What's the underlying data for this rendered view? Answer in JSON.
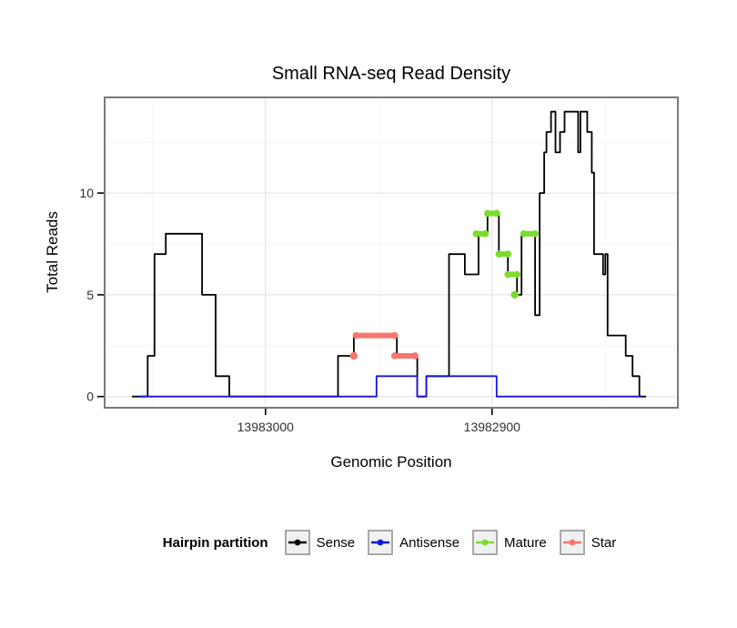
{
  "chart_data": {
    "type": "line",
    "title": "Small RNA-seq Read Density",
    "xlabel": "Genomic Position",
    "ylabel": "Total Reads",
    "x_axis": {
      "reversed": true,
      "xlim_left": 13983071,
      "xlim_right": 13982818,
      "ticks": [
        13983000,
        13982900
      ],
      "tick_labels": [
        "13983000",
        "13982900"
      ],
      "minor_ticks": [
        13983050,
        13982950,
        13982850
      ]
    },
    "y_axis": {
      "ylim": [
        -0.55,
        14.7
      ],
      "ticks": [
        0,
        5,
        10
      ],
      "tick_labels": [
        "0",
        "5",
        "10"
      ],
      "minor_ticks": [
        2.5,
        7.5,
        12.5
      ]
    },
    "style": {
      "panel_border": "#7a7a7a",
      "grid_major": "#e7e7e7",
      "grid_minor": "#f4f4f4",
      "tick_color": "#000000",
      "tick_label_color": "#303030"
    },
    "series": [
      {
        "name": "Sense",
        "type": "step-line",
        "color": "#000000",
        "points": [
          [
            13983059,
            0
          ],
          [
            13983052,
            0
          ],
          [
            13983052,
            2
          ],
          [
            13983049,
            2
          ],
          [
            13983049,
            7
          ],
          [
            13983044,
            7
          ],
          [
            13983044,
            8
          ],
          [
            13983028,
            8
          ],
          [
            13983028,
            5
          ],
          [
            13983022,
            5
          ],
          [
            13983022,
            1
          ],
          [
            13983016,
            1
          ],
          [
            13983016,
            0
          ],
          [
            13982968,
            0
          ],
          [
            13982968,
            2
          ],
          [
            13982961,
            2
          ],
          [
            13982961,
            3
          ],
          [
            13982942,
            3
          ],
          [
            13982942,
            2
          ],
          [
            13982933,
            2
          ],
          [
            13982933,
            0
          ],
          [
            13982929,
            0
          ],
          [
            13982929,
            1
          ],
          [
            13982919,
            1
          ],
          [
            13982919,
            7
          ],
          [
            13982912,
            7
          ],
          [
            13982912,
            6
          ],
          [
            13982906,
            6
          ],
          [
            13982906,
            8
          ],
          [
            13982902,
            8
          ],
          [
            13982902,
            9
          ],
          [
            13982897,
            9
          ],
          [
            13982897,
            7
          ],
          [
            13982893,
            7
          ],
          [
            13982893,
            6
          ],
          [
            13982889,
            6
          ],
          [
            13982889,
            5
          ],
          [
            13982887,
            5
          ],
          [
            13982887,
            8
          ],
          [
            13982881,
            8
          ],
          [
            13982881,
            4
          ],
          [
            13982879,
            4
          ],
          [
            13982879,
            10
          ],
          [
            13982877,
            10
          ],
          [
            13982877,
            12
          ],
          [
            13982876,
            12
          ],
          [
            13982876,
            13
          ],
          [
            13982874,
            13
          ],
          [
            13982874,
            14
          ],
          [
            13982872,
            14
          ],
          [
            13982872,
            12
          ],
          [
            13982870,
            12
          ],
          [
            13982870,
            13
          ],
          [
            13982868,
            13
          ],
          [
            13982868,
            14
          ],
          [
            13982862,
            14
          ],
          [
            13982862,
            12
          ],
          [
            13982861,
            12
          ],
          [
            13982861,
            14
          ],
          [
            13982858,
            14
          ],
          [
            13982858,
            13
          ],
          [
            13982856,
            13
          ],
          [
            13982856,
            11
          ],
          [
            13982855,
            11
          ],
          [
            13982855,
            7
          ],
          [
            13982851,
            7
          ],
          [
            13982851,
            6
          ],
          [
            13982850,
            6
          ],
          [
            13982850,
            7
          ],
          [
            13982849,
            7
          ],
          [
            13982849,
            3
          ],
          [
            13982841,
            3
          ],
          [
            13982841,
            2
          ],
          [
            13982838,
            2
          ],
          [
            13982838,
            1
          ],
          [
            13982835,
            1
          ],
          [
            13982835,
            0
          ],
          [
            13982832,
            0
          ]
        ]
      },
      {
        "name": "Antisense",
        "type": "step-line",
        "color": "#1414DC",
        "points": [
          [
            13983056,
            0
          ],
          [
            13982951,
            0
          ],
          [
            13982951,
            1
          ],
          [
            13982933,
            1
          ],
          [
            13982933,
            0
          ],
          [
            13982929,
            0
          ],
          [
            13982929,
            1
          ],
          [
            13982898,
            1
          ],
          [
            13982898,
            0
          ],
          [
            13982834,
            0
          ]
        ]
      },
      {
        "name": "Star",
        "type": "point-segments",
        "color": "#F8766D",
        "segments": [
          [
            [
              13982961,
              2
            ]
          ],
          [
            [
              13982960,
              3
            ],
            [
              13982943,
              3
            ]
          ],
          [
            [
              13982943,
              2
            ],
            [
              13982934,
              2
            ]
          ]
        ]
      },
      {
        "name": "Mature",
        "type": "point-segments",
        "color": "#7CDB2C",
        "segments": [
          [
            [
              13982907,
              8
            ],
            [
              13982903,
              8
            ]
          ],
          [
            [
              13982902,
              9
            ],
            [
              13982898,
              9
            ]
          ],
          [
            [
              13982897,
              7
            ],
            [
              13982893,
              7
            ]
          ],
          [
            [
              13982893,
              6
            ],
            [
              13982889,
              6
            ]
          ],
          [
            [
              13982890,
              5
            ]
          ],
          [
            [
              13982886,
              8
            ],
            [
              13982881,
              8
            ]
          ]
        ]
      }
    ],
    "legend": {
      "title": "Hairpin partition",
      "entries": [
        {
          "label": "Sense",
          "color": "#000000"
        },
        {
          "label": "Antisense",
          "color": "#1414DC"
        },
        {
          "label": "Mature",
          "color": "#7CDB2C"
        },
        {
          "label": "Star",
          "color": "#F8766D"
        }
      ]
    }
  }
}
